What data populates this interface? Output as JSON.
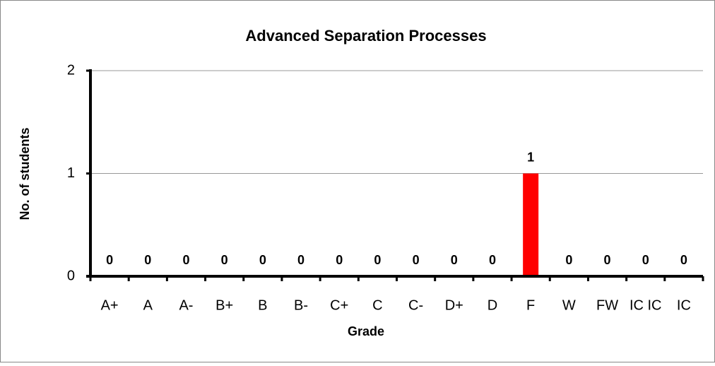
{
  "chart_data": {
    "type": "bar",
    "title": "Advanced Separation Processes",
    "xlabel": "Grade",
    "ylabel": "No. of students",
    "categories": [
      "A+",
      "A",
      "A-",
      "B+",
      "B",
      "B-",
      "C+",
      "C",
      "C-",
      "D+",
      "D",
      "F",
      "W",
      "FW",
      "IC IC",
      "IC"
    ],
    "values": [
      0,
      0,
      0,
      0,
      0,
      0,
      0,
      0,
      0,
      0,
      0,
      1,
      0,
      0,
      0,
      0
    ],
    "color": "#ff0000",
    "ylim": [
      0,
      2
    ],
    "yticks": [
      0,
      1,
      2
    ],
    "grid": true
  }
}
